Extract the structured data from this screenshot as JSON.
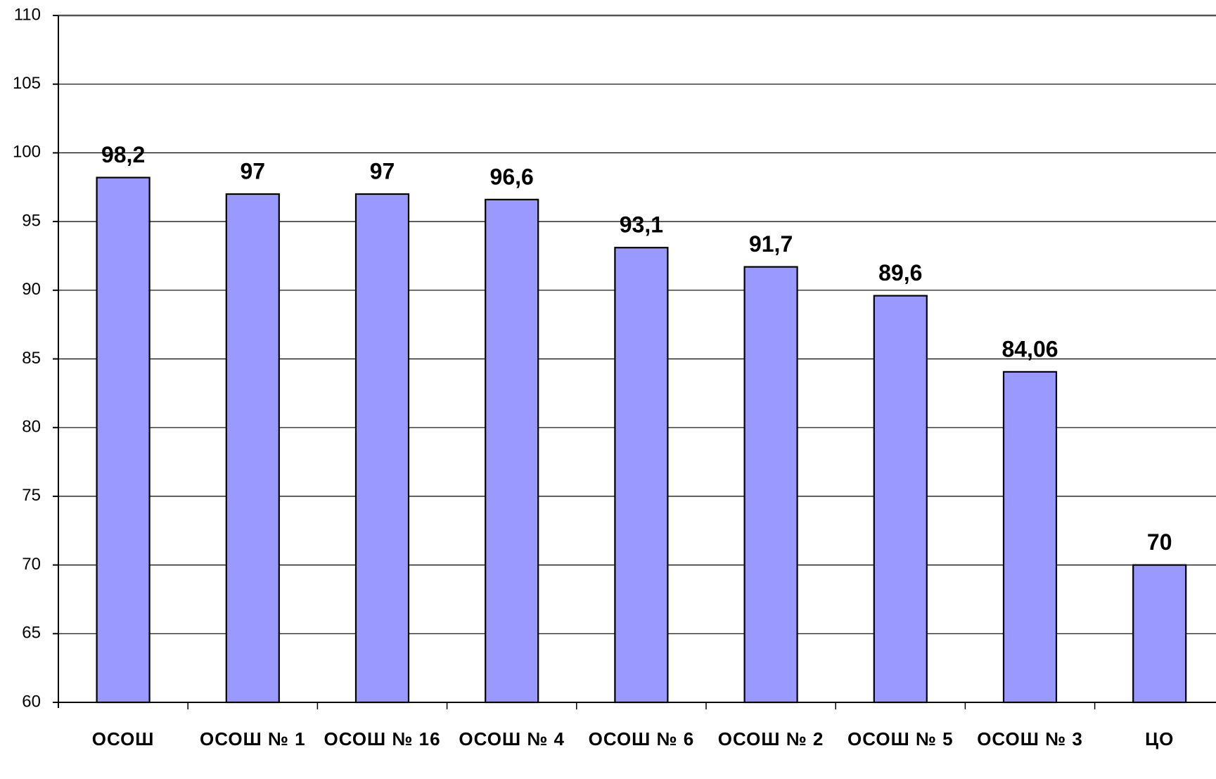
{
  "chart_data": {
    "type": "bar",
    "categories": [
      "ОСОШ",
      "ОСОШ № 1",
      "ОСОШ № 16",
      "ОСОШ № 4",
      "ОСОШ № 6",
      "ОСОШ № 2",
      "ОСОШ № 5",
      "ОСОШ № 3",
      "ЦО"
    ],
    "values": [
      98.2,
      97,
      97,
      96.6,
      93.1,
      91.7,
      89.6,
      84.06,
      70
    ],
    "value_labels": [
      "98,2",
      "97",
      "97",
      "96,6",
      "93,1",
      "91,7",
      "89,6",
      "84,06",
      "70"
    ],
    "color": "#9999ff",
    "ylim": [
      60,
      110
    ],
    "yticks": [
      60,
      65,
      70,
      75,
      80,
      85,
      90,
      95,
      100,
      105,
      110
    ],
    "grid": true
  }
}
